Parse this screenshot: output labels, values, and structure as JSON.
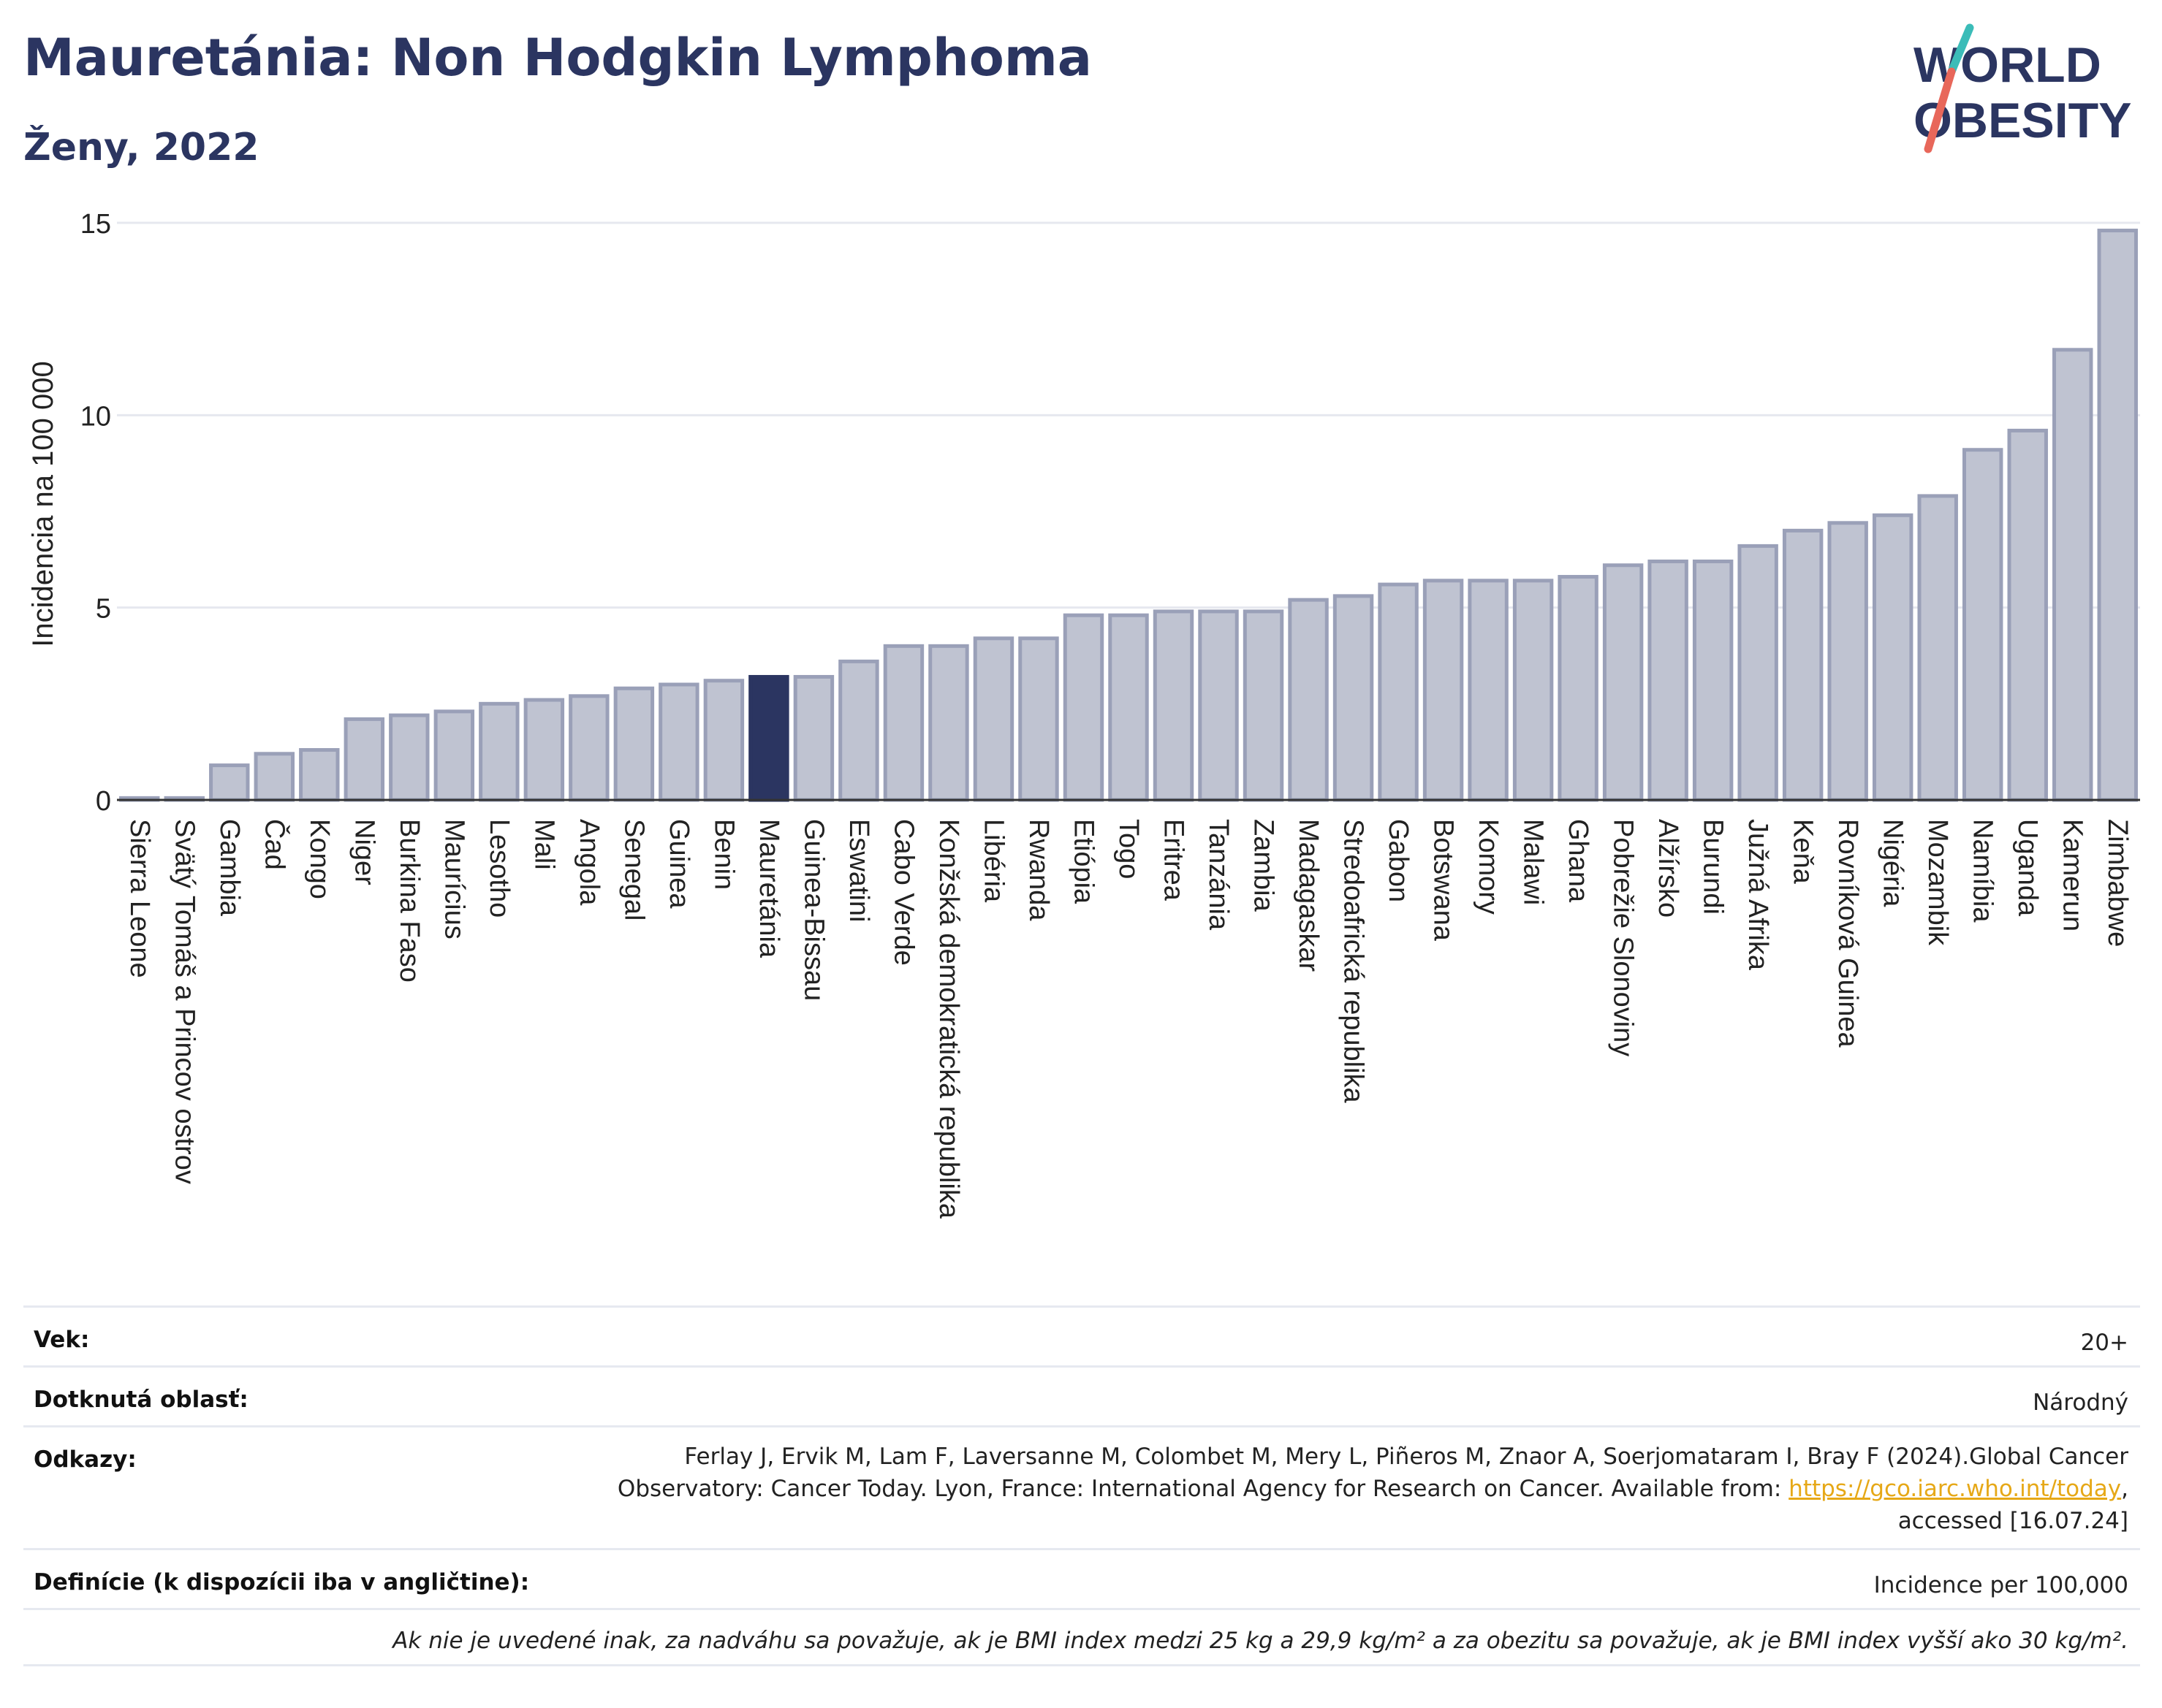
{
  "header": {
    "title": "Mauretánia: Non Hodgkin Lymphoma",
    "subtitle": "Ženy, 2022"
  },
  "logo": {
    "line1": "WORLD",
    "line2": "OBESITY",
    "colors": {
      "text": "#2b3561",
      "slash_teal": "#3bbcb8",
      "slash_red": "#e8675a"
    }
  },
  "chart_data": {
    "type": "bar",
    "ylabel": "Incidencia na 100 000",
    "ylim": [
      0,
      15
    ],
    "yticks": [
      0,
      5,
      10,
      15
    ],
    "grid": true,
    "highlight": "Mauretánia",
    "colors": {
      "bar": "#bfc3d1",
      "bar_border": "#9aa0b8",
      "highlight": "#2b3561",
      "grid": "#e6e8ef"
    },
    "categories": [
      "Sierra Leone",
      "Svätý Tomáš a Princov ostrov",
      "Gambia",
      "Čad",
      "Kongo",
      "Niger",
      "Burkina Faso",
      "Maurícius",
      "Lesotho",
      "Mali",
      "Angola",
      "Senegal",
      "Guinea",
      "Benin",
      "Mauretánia",
      "Guinea-Bissau",
      "Eswatini",
      "Cabo Verde",
      "Konžská demokratická republika",
      "Libéria",
      "Rwanda",
      "Etiópia",
      "Togo",
      "Eritrea",
      "Tanzánia",
      "Zambia",
      "Madagaskar",
      "Stredoafrická republika",
      "Gabon",
      "Botswana",
      "Komory",
      "Malawi",
      "Ghana",
      "Pobrežie Slonoviny",
      "Alžírsko",
      "Burundi",
      "Južná Afrika",
      "Keňa",
      "Rovníková Guinea",
      "Nigéria",
      "Mozambik",
      "Namíbia",
      "Uganda",
      "Kamerun",
      "Zimbabwe"
    ],
    "values": [
      0.05,
      0.05,
      0.9,
      1.2,
      1.3,
      2.1,
      2.2,
      2.3,
      2.5,
      2.6,
      2.7,
      2.9,
      3.0,
      3.1,
      3.2,
      3.2,
      3.6,
      4.0,
      4.0,
      4.2,
      4.2,
      4.8,
      4.8,
      4.9,
      4.9,
      4.9,
      5.2,
      5.3,
      5.6,
      5.7,
      5.7,
      5.7,
      5.8,
      6.1,
      6.2,
      6.2,
      6.6,
      7.0,
      7.2,
      7.4,
      7.9,
      9.1,
      9.6,
      11.7,
      14.8
    ]
  },
  "meta": {
    "age_label": "Vek:",
    "age_value": "20+",
    "area_label": "Dotknutá oblasť:",
    "area_value": "Národný",
    "refs_label": "Odkazy:",
    "refs_line1": "Ferlay J, Ervik M, Lam F, Laversanne M, Colombet M, Mery L, Piñeros M, Znaor A, Soerjomataram I, Bray F (2024).Global Cancer",
    "refs_line2": "Observatory: Cancer Today. Lyon, France: International Agency for Research on Cancer. Available from: ",
    "refs_link": "https://gco.iarc.who.int/today",
    "refs_line2_end": ",",
    "refs_line3": "accessed [16.07.24]",
    "def_label": "Definície (k dispozícii iba v angličtine):",
    "def_value": "Incidence per 100,000",
    "note": "Ak nie je uvedené inak, za nadváhu sa považuje, ak je BMI index medzi 25 kg a 29,9 kg/m² a za obezitu sa považuje, ak je BMI index vyšší ako 30 kg/m²."
  }
}
